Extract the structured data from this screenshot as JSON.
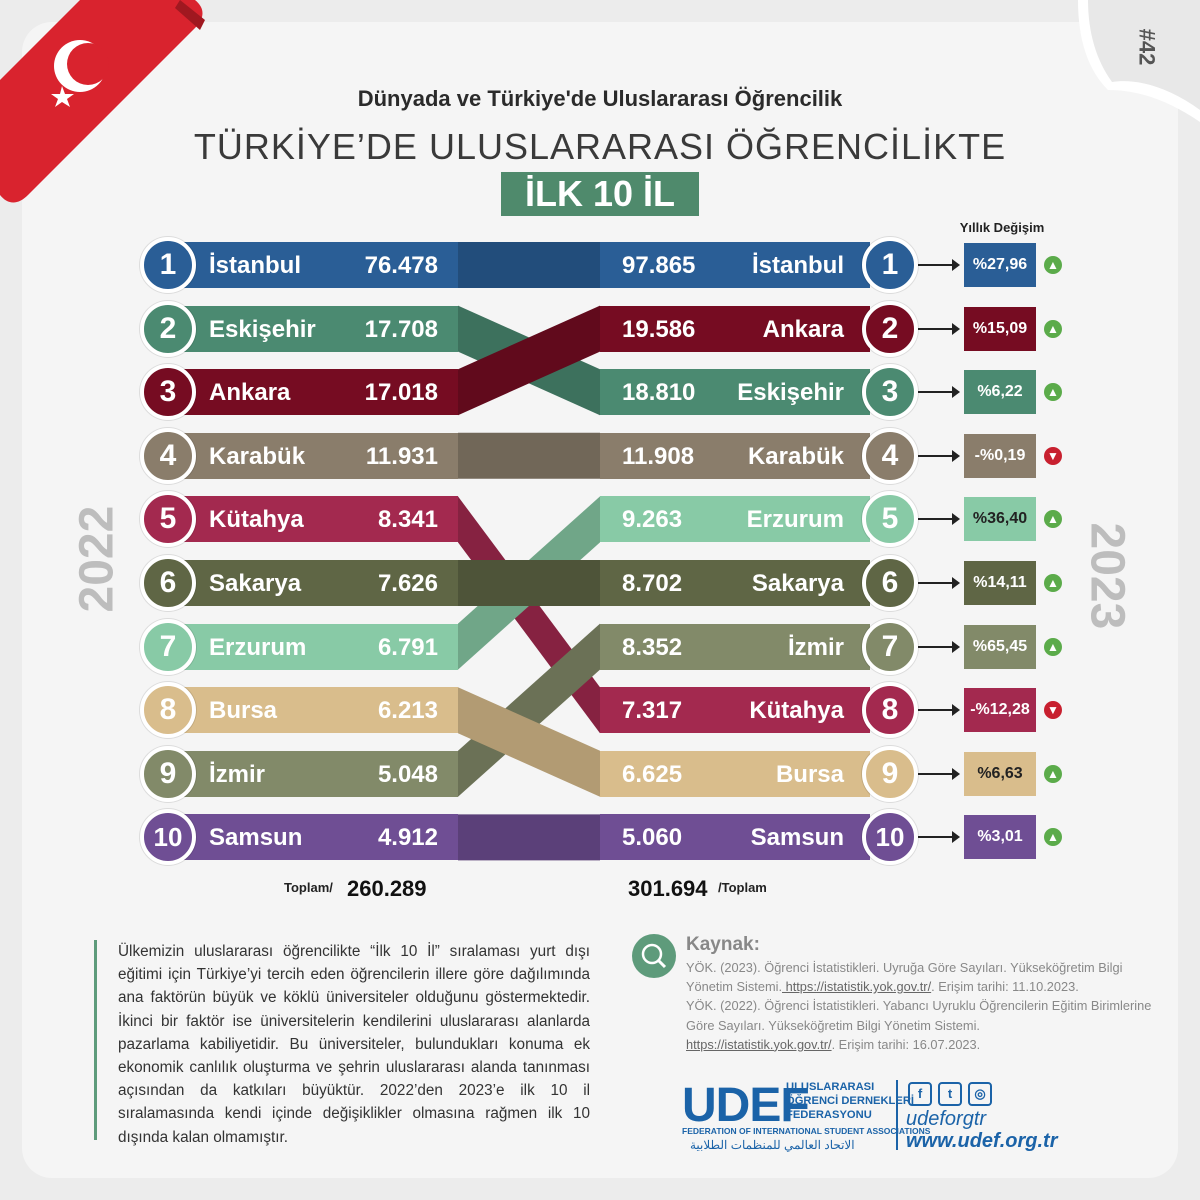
{
  "header": {
    "subtitle": "Dünyada ve Türkiye'de Uluslararası Öğrencilik",
    "title": "TÜRKİYE’DE ULUSLARARASI ÖĞRENCİLİKTE",
    "badge": "İLK 10 İL",
    "issue": "#42"
  },
  "colors": {
    "İstanbul": "#2a5e96",
    "Eskişehir": "#4b8a71",
    "Ankara": "#760c22",
    "Karabük": "#8a7d6b",
    "Kütahya": "#a3294f",
    "Sakarya": "#5f6645",
    "Erzurum": "#88caa6",
    "Bursa": "#d9bd8c",
    "İzmir": "#828a69",
    "Samsun": "#6f4e94"
  },
  "chart_data": {
    "type": "bar",
    "change_header": "Yıllık Değişim",
    "left": {
      "year": "2022",
      "total_label": "Toplam/",
      "total": "260.289",
      "rows": [
        {
          "rank": "1",
          "city": "İstanbul",
          "value": "76.478"
        },
        {
          "rank": "2",
          "city": "Eskişehir",
          "value": "17.708"
        },
        {
          "rank": "3",
          "city": "Ankara",
          "value": "17.018"
        },
        {
          "rank": "4",
          "city": "Karabük",
          "value": "11.931"
        },
        {
          "rank": "5",
          "city": "Kütahya",
          "value": "8.341"
        },
        {
          "rank": "6",
          "city": "Sakarya",
          "value": "7.626"
        },
        {
          "rank": "7",
          "city": "Erzurum",
          "value": "6.791"
        },
        {
          "rank": "8",
          "city": "Bursa",
          "value": "6.213"
        },
        {
          "rank": "9",
          "city": "İzmir",
          "value": "5.048"
        },
        {
          "rank": "10",
          "city": "Samsun",
          "value": "4.912"
        }
      ]
    },
    "right": {
      "year": "2023",
      "total_label": "/Toplam",
      "total": "301.694",
      "rows": [
        {
          "rank": "1",
          "city": "İstanbul",
          "value": "97.865",
          "change": "%27,96",
          "trend": "up"
        },
        {
          "rank": "2",
          "city": "Ankara",
          "value": "19.586",
          "change": "%15,09",
          "trend": "up"
        },
        {
          "rank": "3",
          "city": "Eskişehir",
          "value": "18.810",
          "change": "%6,22",
          "trend": "up"
        },
        {
          "rank": "4",
          "city": "Karabük",
          "value": "11.908",
          "change": "-%0,19",
          "trend": "down"
        },
        {
          "rank": "5",
          "city": "Erzurum",
          "value": "9.263",
          "change": "%36,40",
          "trend": "up"
        },
        {
          "rank": "6",
          "city": "Sakarya",
          "value": "8.702",
          "change": "%14,11",
          "trend": "up"
        },
        {
          "rank": "7",
          "city": "İzmir",
          "value": "8.352",
          "change": "%65,45",
          "trend": "up"
        },
        {
          "rank": "8",
          "city": "Kütahya",
          "value": "7.317",
          "change": "-%12,28",
          "trend": "down"
        },
        {
          "rank": "9",
          "city": "Bursa",
          "value": "6.625",
          "change": "%6,63",
          "trend": "up"
        },
        {
          "rank": "10",
          "city": "Samsun",
          "value": "5.060",
          "change": "%3,01",
          "trend": "up"
        }
      ]
    }
  },
  "description": "Ülkemizin uluslararası öğrencilikte “İlk 10 İl” sıralaması yurt dışı eğitimi için Türkiye’yi tercih eden öğrencilerin illere göre dağılımında ana faktörün büyük ve köklü üniversiteler olduğunu göstermektedir. İkinci bir faktör ise üniversitelerin kendilerini uluslararası alanlarda pazarlama kabiliyetidir. Bu üniversiteler, bulundukları konuma ek ekonomik canlılık oluşturma ve şehrin uluslararası alanda tanınması açısından da katkıları büyüktür. 2022’den 2023’e ilk 10 il sıralamasında kendi içinde değişiklikler olmasına rağmen ilk 10 dışında kalan olmamıştır.",
  "sources": {
    "heading": "Kaynak:",
    "s1_text": "YÖK. (2023). Öğrenci İstatistikleri. Uyruğa Göre Sayıları. Yükseköğretim Bilgi Yönetim Sistemi.",
    "s1_link": " https://istatistik.yok.gov.tr/",
    "s1_date": ". Erişim tarihi: 11.10.2023.",
    "s2_text": "YÖK. (2022). Öğrenci İstatistikleri. Yabancı Uyruklu Öğrencilerin Eğitim Birimlerine Göre Sayıları. Yükseköğretim Bilgi Yönetim Sistemi.",
    "s2_link": "https://istatistik.yok.gov.tr/",
    "s2_date": ". Erişim tarihi: 16.07.2023."
  },
  "footer": {
    "logo": "UDEF",
    "org_line1": "ULUSLARARASI",
    "org_line2": "ÖĞRENCİ DERNEKLERİ",
    "org_line3": "FEDERASYONU",
    "org_en": "FEDERATION OF INTERNATIONAL STUDENT ASSOCIATIONS",
    "org_ar": "الاتحاد العالمي للمنظمات الطلابية",
    "handle": "udeforgtr",
    "website": "www.udef.org.tr",
    "social_icons": [
      "facebook-icon",
      "twitter-icon",
      "instagram-icon"
    ]
  }
}
